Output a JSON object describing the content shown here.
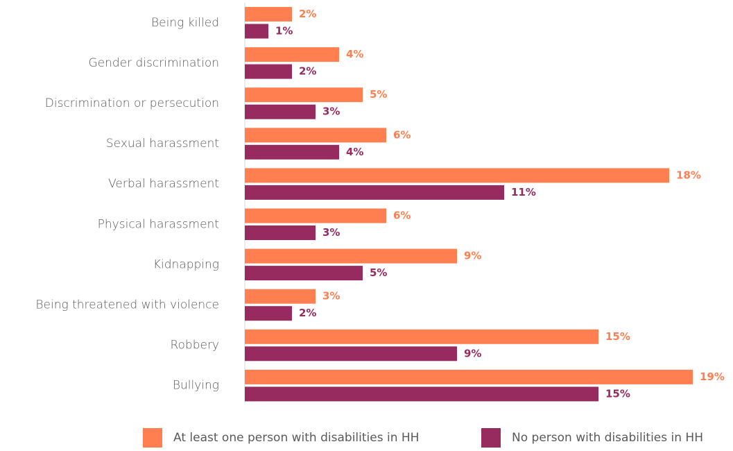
{
  "chart_data": {
    "type": "bar",
    "orientation": "horizontal",
    "title": "",
    "xlabel": "",
    "ylabel": "",
    "categories": [
      "Being killed",
      "Gender discrimination",
      "Discrimination or persecution",
      "Sexual harassment",
      "Verbal harassment",
      "Physical harassment",
      "Kidnapping",
      "Being threatened with violence",
      "Robbery",
      "Bullying"
    ],
    "series": [
      {
        "name": "At least one person with disabilities in HH",
        "color": "#FF7F50",
        "values": [
          2,
          4,
          5,
          6,
          18,
          6,
          9,
          3,
          15,
          19
        ]
      },
      {
        "name": "No person with disabilities in HH",
        "color": "#972B60",
        "values": [
          1,
          2,
          3,
          4,
          11,
          3,
          5,
          2,
          9,
          15
        ]
      }
    ],
    "value_suffix": "%",
    "xlim": [
      0,
      19
    ],
    "grid": false,
    "legend_position": "bottom"
  }
}
